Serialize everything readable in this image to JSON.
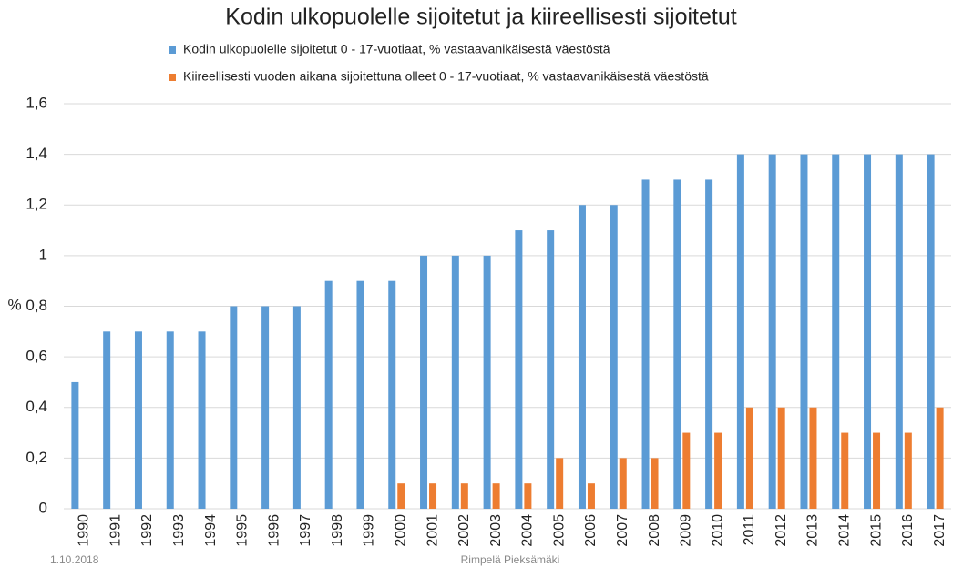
{
  "chart_data": {
    "type": "bar",
    "title": "Kodin ulkopuolelle sijoitetut ja kiireellisesti sijoitetut",
    "y_label": "%",
    "categories": [
      "1990",
      "1991",
      "1992",
      "1993",
      "1994",
      "1995",
      "1996",
      "1997",
      "1998",
      "1999",
      "2000",
      "2001",
      "2002",
      "2003",
      "2004",
      "2005",
      "2006",
      "2007",
      "2008",
      "2009",
      "2010",
      "2011",
      "2012",
      "2013",
      "2014",
      "2015",
      "2016",
      "2017"
    ],
    "series": [
      {
        "name": "Kodin ulkopuolelle sijoitetut 0 - 17-vuotiaat, % vastaavanikäisestä väestöstä",
        "color": "#5b9bd5",
        "values": [
          0.5,
          0.7,
          0.7,
          0.7,
          0.7,
          0.8,
          0.8,
          0.8,
          0.9,
          0.9,
          0.9,
          1,
          1,
          1,
          1.1,
          1.1,
          1.2,
          1.2,
          1.3,
          1.3,
          1.3,
          1.4,
          1.4,
          1.4,
          1.4,
          1.4,
          1.4,
          1.4
        ]
      },
      {
        "name": "Kiireellisesti vuoden aikana sijoitettuna olleet 0 - 17-vuotiaat, % vastaavanikäisestä väestöstä",
        "color": "#ed7d31",
        "values": [
          null,
          null,
          null,
          null,
          null,
          null,
          null,
          null,
          null,
          null,
          0.1,
          0.1,
          0.1,
          0.1,
          0.1,
          0.2,
          0.1,
          0.2,
          0.2,
          0.3,
          0.3,
          0.4,
          0.4,
          0.4,
          0.3,
          0.3,
          0.3,
          0.4
        ]
      }
    ],
    "ylim": [
      0,
      1.6
    ],
    "yticks": [
      0,
      {
        "value": 0.2,
        "label": "0,2"
      },
      {
        "value": 0.4,
        "label": "0,4"
      },
      {
        "value": 0.6,
        "label": "0,6"
      },
      {
        "value": 0.8,
        "label": "0,8"
      },
      1,
      {
        "value": 1.2,
        "label": "1,2"
      },
      {
        "value": 1.4,
        "label": "1,4"
      },
      {
        "value": 1.6,
        "label": "1,6"
      }
    ],
    "grid": true,
    "legend": "top",
    "footer_left": "1.10.2018",
    "footer_center": "Rimpelä  Pieksämäki"
  }
}
